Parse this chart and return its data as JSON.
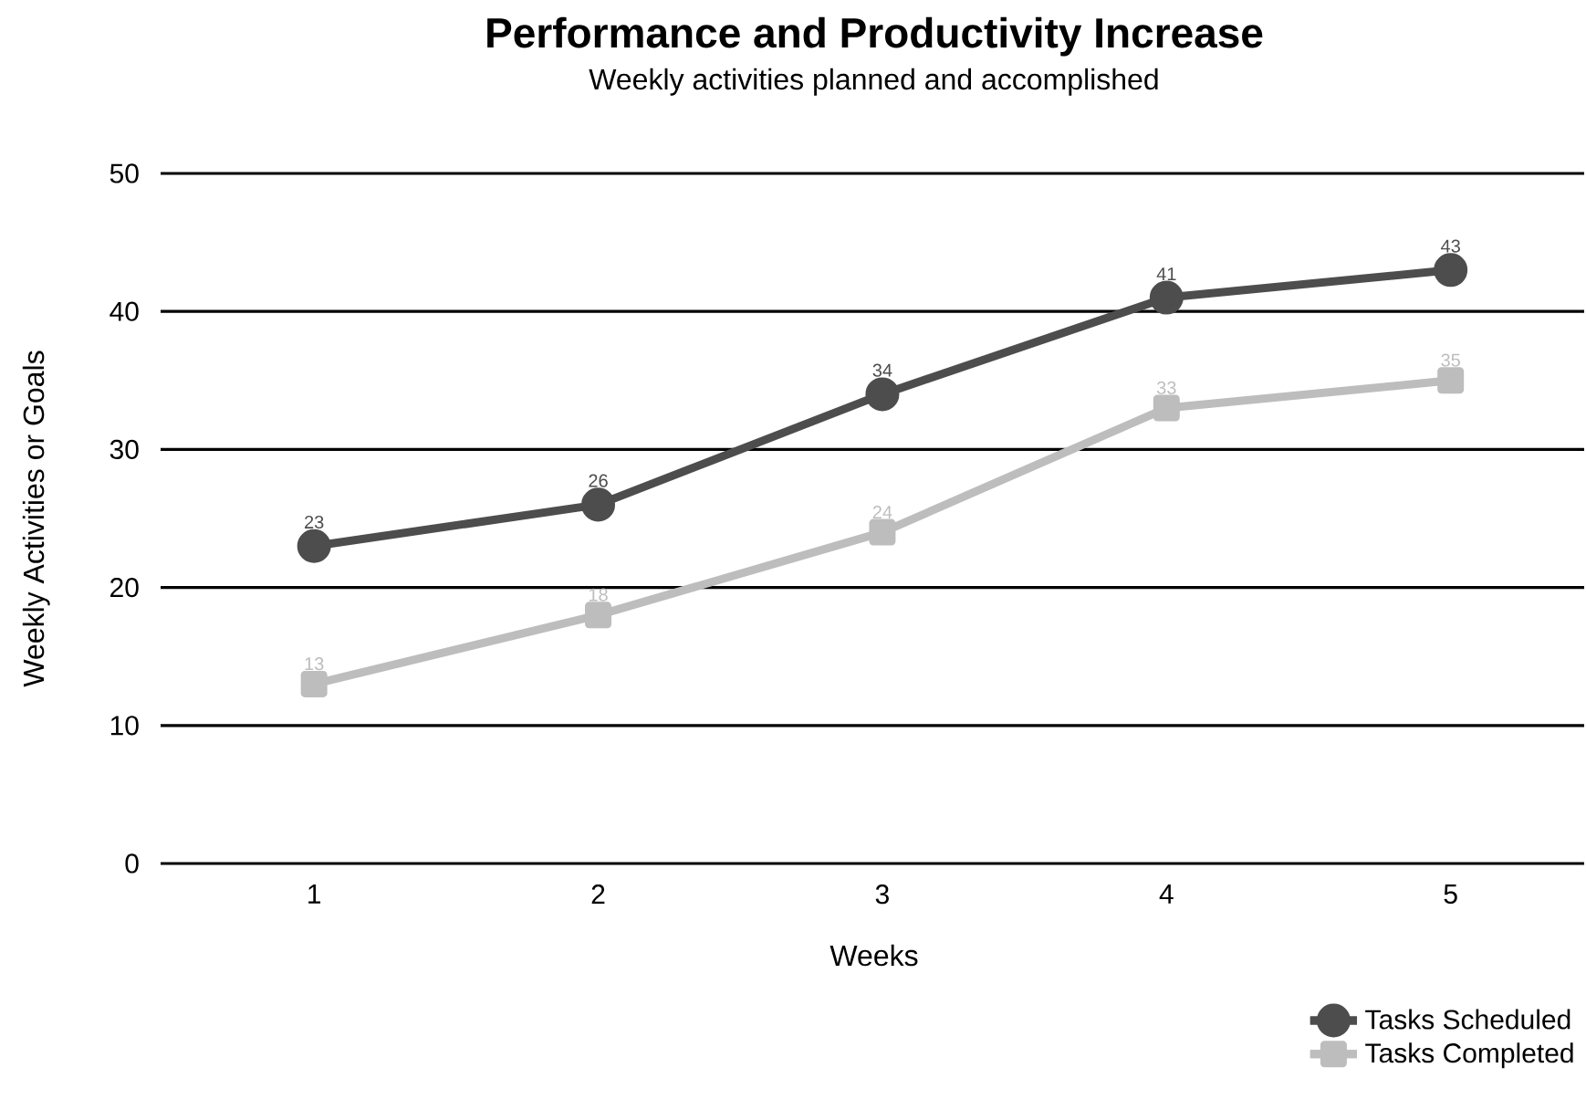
{
  "chart_data": {
    "type": "line",
    "title": "Performance and Productivity Increase",
    "subtitle": "Weekly activities planned and accomplished",
    "xlabel": "Weeks",
    "ylabel": "Weekly Activities or Goals",
    "categories": [
      "1",
      "2",
      "3",
      "4",
      "5"
    ],
    "series": [
      {
        "name": "Tasks Scheduled",
        "color": "#4d4d4d",
        "marker": "circle",
        "values": [
          23,
          26,
          34,
          41,
          43
        ]
      },
      {
        "name": "Tasks Completed",
        "color": "#bdbdbd",
        "marker": "square",
        "values": [
          13,
          18,
          24,
          33,
          35
        ]
      }
    ],
    "ylim": [
      0,
      50
    ],
    "yticks": [
      0,
      10,
      20,
      30,
      40,
      50
    ],
    "grid": "y",
    "legend": "bottom right",
    "data_labels": true,
    "line_style": "solid"
  }
}
